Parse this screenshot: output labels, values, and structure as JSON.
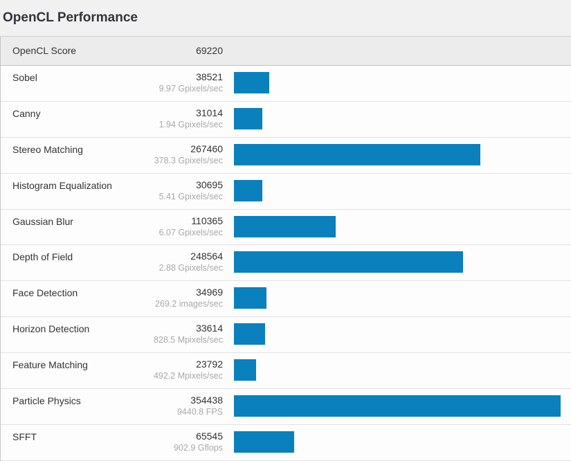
{
  "chart_data": {
    "type": "bar",
    "orientation": "horizontal",
    "title": "OpenCL Performance",
    "score_label": "OpenCL Score",
    "score": 69220,
    "bar_color": "#0a80bd",
    "max_bar_value": 354438,
    "legend": "none",
    "grid": false,
    "rows": [
      {
        "name": "Sobel",
        "value": 38521,
        "rate": "9.97 Gpixels/sec"
      },
      {
        "name": "Canny",
        "value": 31014,
        "rate": "1.94 Gpixels/sec"
      },
      {
        "name": "Stereo Matching",
        "value": 267460,
        "rate": "378.3 Gpixels/sec"
      },
      {
        "name": "Histogram Equalization",
        "value": 30695,
        "rate": "5.41 Gpixels/sec"
      },
      {
        "name": "Gaussian Blur",
        "value": 110365,
        "rate": "6.07 Gpixels/sec"
      },
      {
        "name": "Depth of Field",
        "value": 248564,
        "rate": "2.88 Gpixels/sec"
      },
      {
        "name": "Face Detection",
        "value": 34969,
        "rate": "269.2 images/sec"
      },
      {
        "name": "Horizon Detection",
        "value": 33614,
        "rate": "828.5 Mpixels/sec"
      },
      {
        "name": "Feature Matching",
        "value": 23792,
        "rate": "492.2 Mpixels/sec"
      },
      {
        "name": "Particle Physics",
        "value": 354438,
        "rate": "9440.8 FPS"
      },
      {
        "name": "SFFT",
        "value": 65545,
        "rate": "902.9 Gflops"
      }
    ]
  },
  "colors": {
    "page_background": "#f1f1f1",
    "row_background": "#fdfdfd",
    "score_row_background": "#ececec",
    "bar_blue": "#0a80bd"
  }
}
